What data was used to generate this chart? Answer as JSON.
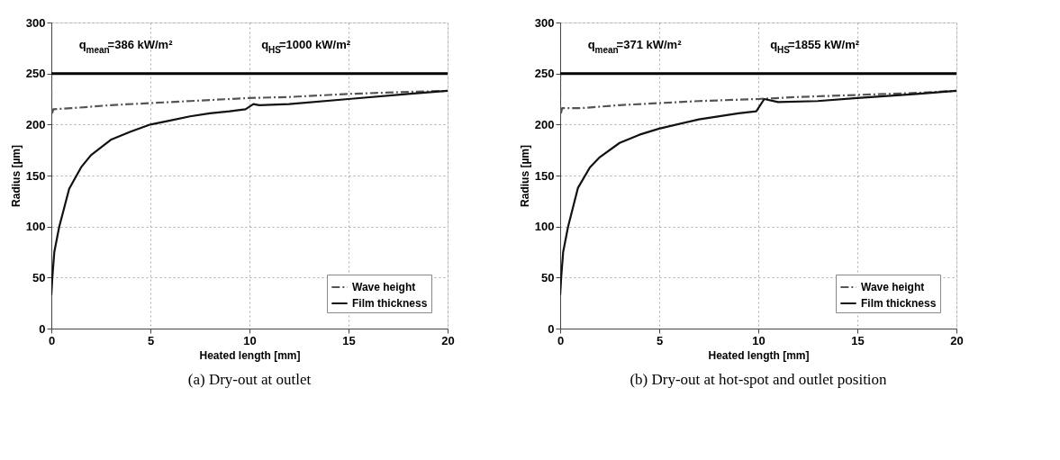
{
  "chart_data": [
    {
      "type": "line",
      "title": "(a) Dry-out at outlet",
      "xlabel": "Heated length [mm]",
      "ylabel": "Radius [µm]",
      "series": [
        {
          "name": "Wave height",
          "color": "#555555",
          "line_style": "dashed",
          "x": [
            0,
            0,
            0.1,
            1,
            3,
            5,
            7,
            10,
            12,
            15,
            18,
            20
          ],
          "values": [
            250,
            208,
            215,
            216,
            219,
            221,
            223,
            226,
            227,
            230,
            232,
            233
          ]
        },
        {
          "name": "Film thickness",
          "color": "#111111",
          "line_style": "solid",
          "x": [
            0,
            0.05,
            0.15,
            0.4,
            0.9,
            1.5,
            2,
            3,
            4,
            5,
            6,
            7,
            8,
            9,
            9.8,
            10.2,
            10.5,
            12,
            15,
            18,
            20
          ],
          "values": [
            33,
            50,
            75,
            100,
            137,
            158,
            170,
            185,
            193,
            200,
            204,
            208,
            211,
            213,
            215,
            220,
            219,
            220,
            225,
            230,
            233
          ]
        }
      ],
      "xlim": [
        0,
        20
      ],
      "xticks": [
        0,
        5,
        10,
        15,
        20
      ],
      "ylim": [
        0,
        300
      ],
      "yticks": [
        0,
        50,
        100,
        150,
        200,
        250,
        300
      ],
      "ref_lines": [
        {
          "axis": "y",
          "value": 250,
          "color": "#000000"
        }
      ],
      "annotations": [
        "q$_{mean}$=386 kW/m²",
        "q$_{HS}$=1000 kW/m²"
      ],
      "grid": true,
      "legend": "bottom right"
    },
    {
      "type": "line",
      "title": "(b) Dry-out at hot-spot and outlet position",
      "xlabel": "Heated length [mm]",
      "ylabel": "Radius [µm]",
      "series": [
        {
          "name": "Wave height",
          "color": "#555555",
          "line_style": "dashed",
          "x": [
            0,
            0,
            0.1,
            1,
            3,
            5,
            7,
            10,
            12,
            15,
            18,
            20
          ],
          "values": [
            250,
            208,
            216,
            216,
            219,
            221,
            223,
            225,
            227,
            229,
            231,
            233
          ]
        },
        {
          "name": "Film thickness",
          "color": "#111111",
          "line_style": "solid",
          "x": [
            0,
            0.05,
            0.15,
            0.4,
            0.9,
            1.5,
            2,
            3,
            4,
            5,
            7,
            9,
            9.9,
            10.3,
            11,
            13,
            15,
            18,
            20
          ],
          "values": [
            33,
            50,
            75,
            100,
            138,
            158,
            168,
            182,
            190,
            196,
            205,
            211,
            213,
            225,
            222,
            223,
            226,
            230,
            233
          ]
        }
      ],
      "xlim": [
        0,
        20
      ],
      "xticks": [
        0,
        5,
        10,
        15,
        20
      ],
      "ylim": [
        0,
        300
      ],
      "yticks": [
        0,
        50,
        100,
        150,
        200,
        250,
        300
      ],
      "ref_lines": [
        {
          "axis": "y",
          "value": 250,
          "color": "#000000"
        }
      ],
      "annotations": [
        "q$_{mean}$=371 kW/m²",
        "q$_{HS}$=1855 kW/m²"
      ],
      "grid": true,
      "legend": "bottom right"
    }
  ]
}
